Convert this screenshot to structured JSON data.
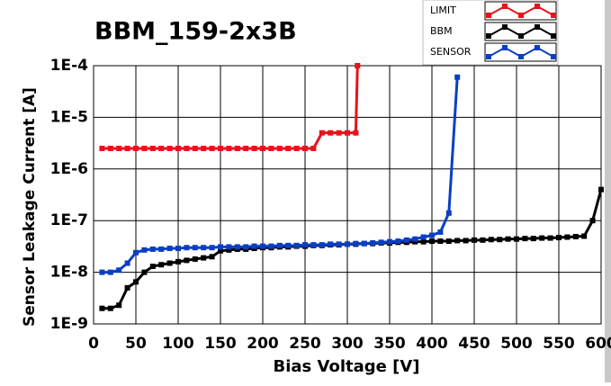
{
  "chart_data": {
    "type": "line",
    "title": "BBM_159-2x3B",
    "x_label": "Bias Voltage [V]",
    "y_label": "Sensor Leakage Current [A]",
    "log_y": true,
    "grid": true,
    "xlim": [
      0,
      600
    ],
    "xticks": [
      0,
      50,
      100,
      150,
      200,
      250,
      300,
      350,
      400,
      450,
      500,
      550,
      600
    ],
    "ylim": [
      1e-09,
      0.0001
    ],
    "yticks": [
      {
        "value": 1e-09,
        "label": "1E-9"
      },
      {
        "value": 1e-08,
        "label": "1E-8"
      },
      {
        "value": 1e-07,
        "label": "1E-7"
      },
      {
        "value": 1e-06,
        "label": "1E-6"
      },
      {
        "value": 1e-05,
        "label": "1E-5"
      },
      {
        "value": 0.0001,
        "label": "1E-4"
      }
    ],
    "series": [
      {
        "name": "LIMIT",
        "color": "#e8121b",
        "x": [
          10,
          20,
          30,
          40,
          50,
          60,
          70,
          80,
          90,
          100,
          110,
          120,
          130,
          140,
          150,
          160,
          170,
          180,
          190,
          200,
          210,
          220,
          230,
          240,
          250,
          260,
          270,
          280,
          290,
          300,
          310,
          312
        ],
        "values": [
          2.5e-06,
          2.5e-06,
          2.5e-06,
          2.5e-06,
          2.5e-06,
          2.5e-06,
          2.5e-06,
          2.5e-06,
          2.5e-06,
          2.5e-06,
          2.5e-06,
          2.5e-06,
          2.5e-06,
          2.5e-06,
          2.5e-06,
          2.5e-06,
          2.5e-06,
          2.5e-06,
          2.5e-06,
          2.5e-06,
          2.5e-06,
          2.5e-06,
          2.5e-06,
          2.5e-06,
          2.5e-06,
          2.5e-06,
          5e-06,
          5e-06,
          5e-06,
          5e-06,
          5e-06,
          0.0001
        ]
      },
      {
        "name": "BBM",
        "color": "#000000",
        "x": [
          10,
          20,
          30,
          40,
          50,
          60,
          70,
          80,
          90,
          100,
          110,
          120,
          130,
          140,
          150,
          160,
          170,
          180,
          190,
          200,
          210,
          220,
          230,
          240,
          250,
          260,
          270,
          280,
          290,
          300,
          310,
          320,
          330,
          340,
          350,
          360,
          370,
          380,
          390,
          400,
          410,
          420,
          430,
          440,
          450,
          460,
          470,
          480,
          490,
          500,
          510,
          520,
          530,
          540,
          550,
          560,
          570,
          580,
          590,
          600
        ],
        "values": [
          2e-09,
          2e-09,
          2.3e-09,
          5e-09,
          6.5e-09,
          1e-08,
          1.3e-08,
          1.4e-08,
          1.5e-08,
          1.6e-08,
          1.7e-08,
          1.8e-08,
          1.9e-08,
          2e-08,
          2.6e-08,
          2.7e-08,
          2.8e-08,
          2.8e-08,
          2.9e-08,
          3e-08,
          3e-08,
          3.1e-08,
          3.1e-08,
          3.2e-08,
          3.2e-08,
          3.3e-08,
          3.3e-08,
          3.4e-08,
          3.4e-08,
          3.5e-08,
          3.5e-08,
          3.6e-08,
          3.6e-08,
          3.7e-08,
          3.7e-08,
          3.8e-08,
          3.8e-08,
          3.9e-08,
          3.9e-08,
          4e-08,
          4e-08,
          4e-08,
          4.1e-08,
          4.1e-08,
          4.2e-08,
          4.2e-08,
          4.3e-08,
          4.3e-08,
          4.4e-08,
          4.4e-08,
          4.5e-08,
          4.5e-08,
          4.6e-08,
          4.6e-08,
          4.7e-08,
          4.8e-08,
          4.9e-08,
          5e-08,
          1e-07,
          4e-07
        ]
      },
      {
        "name": "SENSOR",
        "color": "#0a3fc4",
        "x": [
          10,
          20,
          30,
          40,
          50,
          60,
          70,
          80,
          90,
          100,
          110,
          120,
          130,
          140,
          150,
          160,
          170,
          180,
          190,
          200,
          210,
          220,
          230,
          240,
          250,
          260,
          270,
          280,
          290,
          300,
          310,
          320,
          330,
          340,
          350,
          360,
          370,
          380,
          390,
          400,
          410,
          420,
          430
        ],
        "values": [
          1e-08,
          1e-08,
          1.1e-08,
          1.5e-08,
          2.4e-08,
          2.7e-08,
          2.8e-08,
          2.8e-08,
          2.9e-08,
          2.9e-08,
          3e-08,
          3e-08,
          3e-08,
          3e-08,
          3.1e-08,
          3.1e-08,
          3.1e-08,
          3.1e-08,
          3.2e-08,
          3.2e-08,
          3.2e-08,
          3.3e-08,
          3.3e-08,
          3.3e-08,
          3.4e-08,
          3.4e-08,
          3.4e-08,
          3.5e-08,
          3.5e-08,
          3.5e-08,
          3.6e-08,
          3.6e-08,
          3.7e-08,
          3.8e-08,
          3.9e-08,
          4e-08,
          4.2e-08,
          4.4e-08,
          4.8e-08,
          5.2e-08,
          6e-08,
          1.4e-07,
          6e-05
        ]
      }
    ]
  }
}
